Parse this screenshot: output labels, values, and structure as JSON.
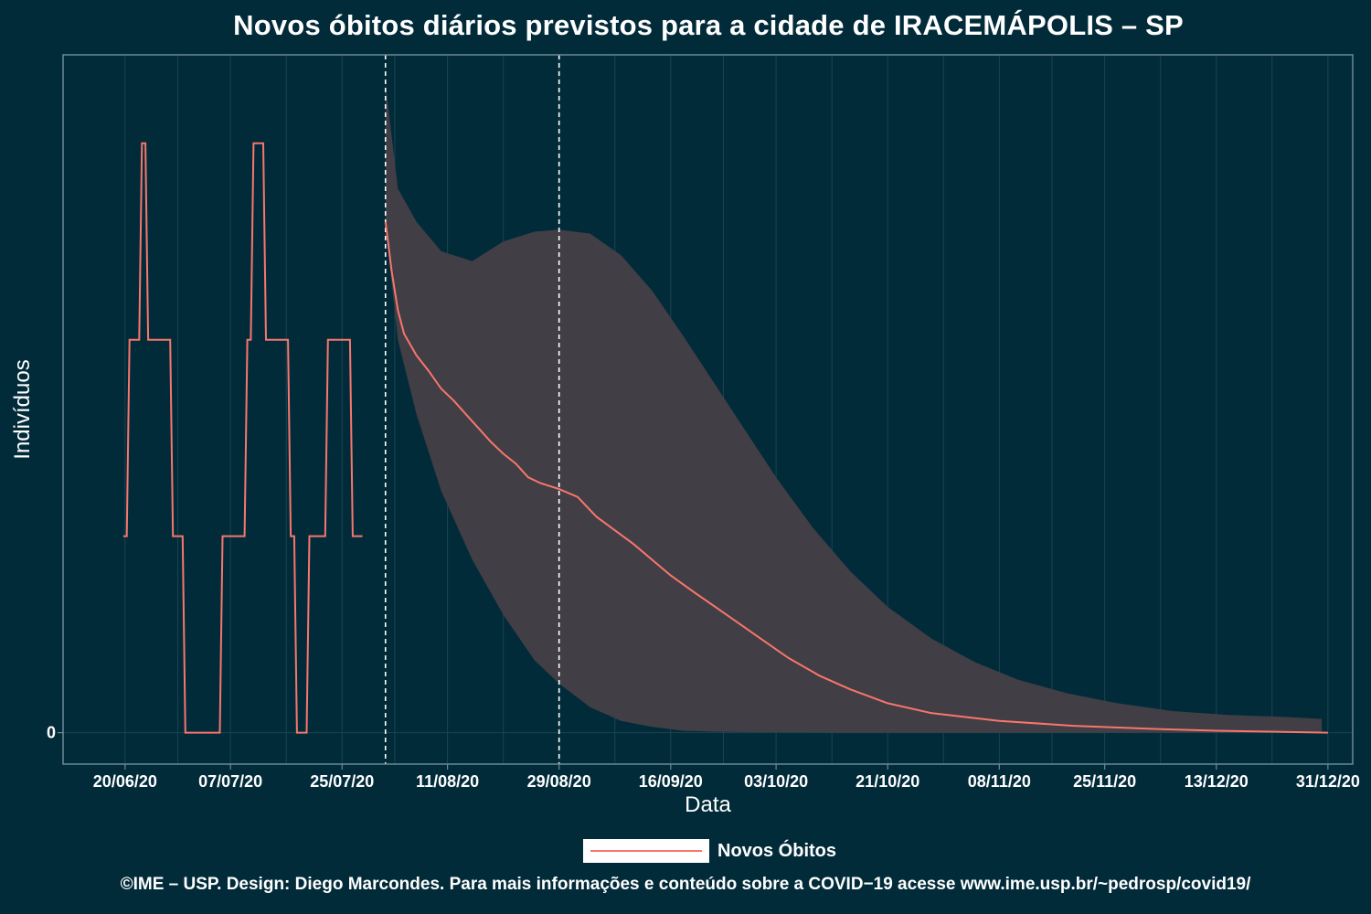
{
  "title": "Novos óbitos diários previstos para a cidade de IRACEMÁPOLIS – SP",
  "caption": "©IME – USP. Design: Diego Marcondes. Para mais informações e conteúdo sobre a COVID−19 acesse www.ime.usp.br/~pedrosp/covid19/",
  "colors": {
    "background": "#022b3a",
    "line": "#f8766d",
    "ribbon": "#413e45",
    "grid": "#1b4452",
    "axis": "#6b8a94",
    "vline": "#ffffff"
  },
  "chart_data": {
    "type": "line",
    "title": "Novos óbitos diários previstos para a cidade de IRACEMÁPOLIS – SP",
    "xlabel": "Data",
    "ylabel": "Indivíduos",
    "x_ticks": [
      "20/06/20",
      "07/07/20",
      "25/07/20",
      "11/08/20",
      "29/08/20",
      "16/09/20",
      "03/10/20",
      "21/10/20",
      "08/11/20",
      "25/11/20",
      "13/12/20",
      "31/12/20"
    ],
    "y_ticks": [
      "0"
    ],
    "x_range": [
      "2020-06-10",
      "2021-01-04"
    ],
    "y_range": [
      -0.16,
      3.45
    ],
    "grid": true,
    "legend_position": "bottom",
    "vlines": [
      "2020-08-01",
      "2020-08-29"
    ],
    "series": [
      {
        "name": "Novos Óbitos",
        "observed": [
          [
            "2020-06-20",
            1
          ],
          [
            "2020-06-21",
            2
          ],
          [
            "2020-06-22",
            2
          ],
          [
            "2020-06-23",
            3
          ],
          [
            "2020-06-24",
            2
          ],
          [
            "2020-06-25",
            2
          ],
          [
            "2020-06-26",
            2
          ],
          [
            "2020-06-27",
            2
          ],
          [
            "2020-06-28",
            1
          ],
          [
            "2020-06-29",
            1
          ],
          [
            "2020-06-30",
            0
          ],
          [
            "2020-07-01",
            0
          ],
          [
            "2020-07-02",
            0
          ],
          [
            "2020-07-03",
            0
          ],
          [
            "2020-07-04",
            0
          ],
          [
            "2020-07-05",
            0
          ],
          [
            "2020-07-06",
            1
          ],
          [
            "2020-07-07",
            1
          ],
          [
            "2020-07-08",
            1
          ],
          [
            "2020-07-09",
            1
          ],
          [
            "2020-07-10",
            2
          ],
          [
            "2020-07-11",
            3
          ],
          [
            "2020-07-12",
            3
          ],
          [
            "2020-07-13",
            2
          ],
          [
            "2020-07-14",
            2
          ],
          [
            "2020-07-15",
            2
          ],
          [
            "2020-07-16",
            2
          ],
          [
            "2020-07-17",
            1
          ],
          [
            "2020-07-18",
            0
          ],
          [
            "2020-07-19",
            0
          ],
          [
            "2020-07-20",
            1
          ],
          [
            "2020-07-21",
            1
          ],
          [
            "2020-07-22",
            1
          ],
          [
            "2020-07-23",
            2
          ],
          [
            "2020-07-24",
            2
          ],
          [
            "2020-07-25",
            2
          ],
          [
            "2020-07-26",
            2
          ],
          [
            "2020-07-27",
            1
          ],
          [
            "2020-07-28",
            1
          ]
        ],
        "predicted": [
          [
            "2020-08-01",
            2.6
          ],
          [
            "2020-08-02",
            2.35
          ],
          [
            "2020-08-03",
            2.15
          ],
          [
            "2020-08-04",
            2.03
          ],
          [
            "2020-08-06",
            1.92
          ],
          [
            "2020-08-08",
            1.84
          ],
          [
            "2020-08-10",
            1.75
          ],
          [
            "2020-08-12",
            1.69
          ],
          [
            "2020-08-14",
            1.62
          ],
          [
            "2020-08-16",
            1.55
          ],
          [
            "2020-08-18",
            1.48
          ],
          [
            "2020-08-20",
            1.42
          ],
          [
            "2020-08-22",
            1.37
          ],
          [
            "2020-08-24",
            1.3
          ],
          [
            "2020-08-26",
            1.27
          ],
          [
            "2020-08-29",
            1.24
          ],
          [
            "2020-09-01",
            1.2
          ],
          [
            "2020-09-04",
            1.1
          ],
          [
            "2020-09-07",
            1.03
          ],
          [
            "2020-09-10",
            0.96
          ],
          [
            "2020-09-13",
            0.88
          ],
          [
            "2020-09-16",
            0.8
          ],
          [
            "2020-09-20",
            0.71
          ],
          [
            "2020-09-25",
            0.6
          ],
          [
            "2020-09-30",
            0.49
          ],
          [
            "2020-10-05",
            0.38
          ],
          [
            "2020-10-10",
            0.29
          ],
          [
            "2020-10-15",
            0.22
          ],
          [
            "2020-10-21",
            0.15
          ],
          [
            "2020-10-28",
            0.1
          ],
          [
            "2020-11-08",
            0.06
          ],
          [
            "2020-11-20",
            0.035
          ],
          [
            "2020-12-02",
            0.02
          ],
          [
            "2020-12-13",
            0.01
          ],
          [
            "2020-12-31",
            0.0
          ]
        ],
        "interval": [
          [
            "2020-08-01",
            2.58,
            3.3
          ],
          [
            "2020-08-03",
            2.0,
            2.77
          ],
          [
            "2020-08-06",
            1.62,
            2.6
          ],
          [
            "2020-08-10",
            1.23,
            2.45
          ],
          [
            "2020-08-15",
            0.88,
            2.4
          ],
          [
            "2020-08-20",
            0.6,
            2.5
          ],
          [
            "2020-08-25",
            0.37,
            2.55
          ],
          [
            "2020-08-29",
            0.25,
            2.56
          ],
          [
            "2020-09-03",
            0.13,
            2.54
          ],
          [
            "2020-09-08",
            0.06,
            2.43
          ],
          [
            "2020-09-13",
            0.03,
            2.25
          ],
          [
            "2020-09-18",
            0.01,
            2.02
          ],
          [
            "2020-09-23",
            0.005,
            1.78
          ],
          [
            "2020-09-28",
            0.003,
            1.54
          ],
          [
            "2020-10-03",
            0.002,
            1.3
          ],
          [
            "2020-10-09",
            0.001,
            1.04
          ],
          [
            "2020-10-15",
            0.0,
            0.82
          ],
          [
            "2020-10-21",
            0.0,
            0.64
          ],
          [
            "2020-10-28",
            0.0,
            0.48
          ],
          [
            "2020-11-04",
            0.0,
            0.36
          ],
          [
            "2020-11-11",
            0.0,
            0.27
          ],
          [
            "2020-11-19",
            0.0,
            0.2
          ],
          [
            "2020-11-27",
            0.0,
            0.15
          ],
          [
            "2020-12-06",
            0.0,
            0.11
          ],
          [
            "2020-12-15",
            0.0,
            0.09
          ],
          [
            "2020-12-24",
            0.0,
            0.08
          ],
          [
            "2020-12-30",
            0.0,
            0.07
          ]
        ]
      }
    ]
  }
}
